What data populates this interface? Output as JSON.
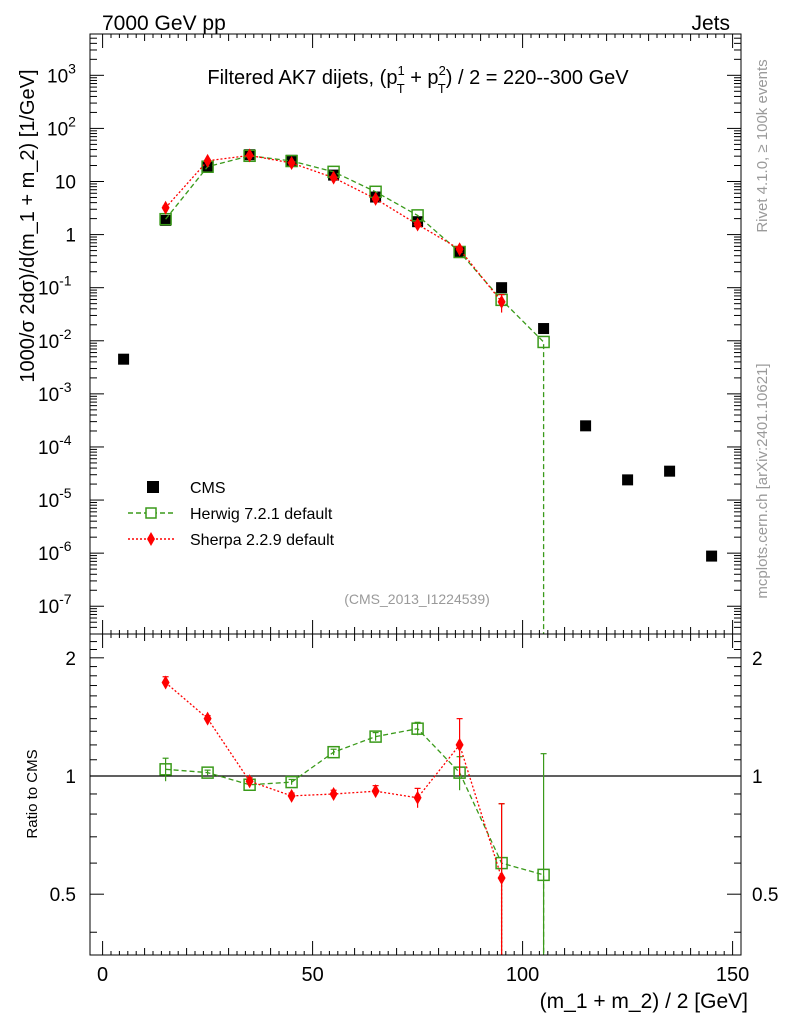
{
  "header": {
    "left": "7000 GeV pp",
    "right": "Jets",
    "side_top": "Rivet 4.1.0, ≥ 100k events",
    "side_bottom": "mcplots.cern.ch [arXiv:2401.10621]"
  },
  "chart_data": [
    {
      "type": "scatter",
      "panel": "main",
      "title": "Filtered AK7 dijets, (p_T^1 + p_T^2) / 2 = 220--300 GeV",
      "title_parts": {
        "prefix": "Filtered AK7 dijets, (p",
        "sub": "T",
        "sup1": "1",
        "sup2": "2",
        "mid": " + p",
        "suffix": ") / 2 = 220--300 GeV"
      },
      "ylabel": "1000/σ  2dσ)/d(m_1 + m_2) [1/GeV]",
      "analysis_tag": "(CMS_2013_I1224539)",
      "yscale": "log",
      "xlim": [
        -3,
        152
      ],
      "ylim": [
        3e-08,
        6000
      ],
      "yticklabels": [
        {
          "v": 1000.0,
          "base": "10",
          "exp": "3"
        },
        {
          "v": 100.0,
          "base": "10",
          "exp": "2"
        },
        {
          "v": 10,
          "base": "10",
          "exp": ""
        },
        {
          "v": 1,
          "base": "1",
          "exp": ""
        },
        {
          "v": 0.1,
          "base": "10",
          "exp": "-1"
        },
        {
          "v": 0.01,
          "base": "10",
          "exp": "-2"
        },
        {
          "v": 0.001,
          "base": "10",
          "exp": "-3"
        },
        {
          "v": 0.0001,
          "base": "10",
          "exp": "-4"
        },
        {
          "v": 1e-05,
          "base": "10",
          "exp": "-5"
        },
        {
          "v": 1e-06,
          "base": "10",
          "exp": "-6"
        },
        {
          "v": 1e-07,
          "base": "10",
          "exp": "-7"
        }
      ],
      "legend": {
        "placement": "bottom-left",
        "entries": [
          "CMS",
          "Herwig 7.2.1 default",
          "Sherpa 2.2.9 default"
        ]
      },
      "series": [
        {
          "name": "CMS",
          "color": "#000000",
          "marker": "square-filled",
          "x": [
            5,
            15,
            25,
            35,
            45,
            55,
            65,
            75,
            85,
            95,
            105,
            115,
            125,
            135,
            145
          ],
          "y": [
            0.0045,
            1.85,
            18.5,
            32,
            25,
            13.2,
            5.1,
            1.75,
            0.46,
            0.1,
            0.017,
            0.00025,
            2.4e-05,
            3.5e-05,
            8.8e-07
          ]
        },
        {
          "name": "Herwig 7.2.1 default",
          "color": "#3a9a1a",
          "marker": "square-open",
          "line": "dashed",
          "x": [
            15,
            25,
            35,
            45,
            55,
            65,
            75,
            85,
            95,
            105
          ],
          "y": [
            1.95,
            19,
            30.5,
            24.3,
            15.2,
            6.4,
            2.3,
            0.47,
            0.059,
            0.0095
          ],
          "drop_to_bottom_at": 105
        },
        {
          "name": "Sherpa 2.2.9 default",
          "color": "#ff0000",
          "marker": "diamond",
          "line": "dotted",
          "x": [
            15,
            25,
            35,
            45,
            55,
            65,
            75,
            85,
            95
          ],
          "y": [
            3.2,
            24.5,
            31,
            22.3,
            11.8,
            4.7,
            1.55,
            0.53,
            0.054
          ],
          "y_err": [
            0.25,
            1.0,
            1.0,
            0.8,
            0.5,
            0.25,
            0.12,
            0.06,
            0.02
          ]
        }
      ]
    },
    {
      "type": "scatter",
      "panel": "ratio",
      "ylabel": "Ratio to CMS",
      "xlabel": "(m_1 + m_2) / 2 [GeV]",
      "xlim": [
        -3,
        152
      ],
      "ylim": [
        0.35,
        2.3
      ],
      "reference_line": 1,
      "xticklabels": [
        0,
        50,
        100,
        150
      ],
      "yticklabels": [
        0.5,
        1,
        2
      ],
      "series": [
        {
          "name": "Herwig 7.2.1 default",
          "color": "#3a9a1a",
          "marker": "square-open",
          "line": "dashed",
          "x": [
            15,
            25,
            35,
            45,
            55,
            65,
            75,
            85,
            95,
            105
          ],
          "y": [
            1.04,
            1.02,
            0.95,
            0.965,
            1.15,
            1.26,
            1.32,
            1.02,
            0.6,
            0.56
          ],
          "y_err": [
            0.07,
            0.015,
            0.015,
            0.015,
            0.02,
            0.03,
            0.05,
            0.1,
            0.25,
            0.58
          ],
          "drop_to_bottom_at": 105
        },
        {
          "name": "Sherpa 2.2.9 default",
          "color": "#ff0000",
          "marker": "diamond",
          "line": "dotted",
          "x": [
            15,
            25,
            35,
            45,
            55,
            65,
            75,
            85,
            95
          ],
          "y": [
            1.73,
            1.4,
            0.97,
            0.89,
            0.9,
            0.915,
            0.88,
            1.2,
            0.55
          ],
          "y_err": [
            0.06,
            0.025,
            0.02,
            0.015,
            0.02,
            0.03,
            0.05,
            0.2,
            0.3
          ],
          "drop_to_bottom_at": 95
        }
      ]
    }
  ]
}
